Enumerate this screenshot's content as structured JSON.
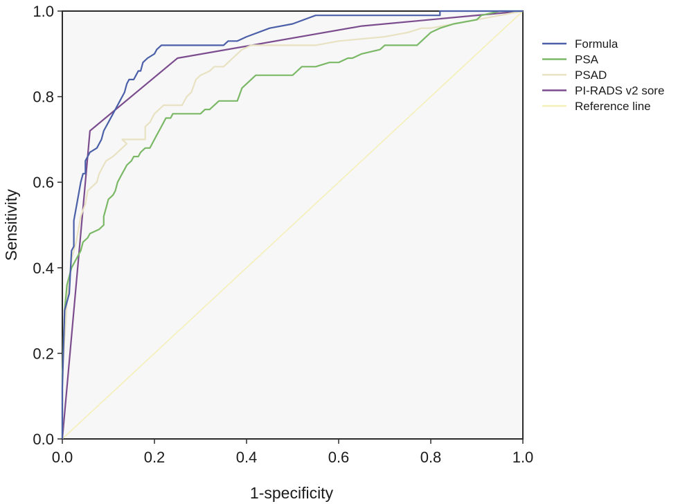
{
  "chart_data": {
    "type": "line",
    "title": "",
    "xlabel": "1-specificity",
    "ylabel": "Sensitivity",
    "xlim": [
      0,
      1
    ],
    "ylim": [
      0,
      1
    ],
    "xticks": [
      "0.0",
      "0.2",
      "0.4",
      "0.6",
      "0.8",
      "1.0"
    ],
    "yticks": [
      "0.0",
      "0.2",
      "0.4",
      "0.6",
      "0.8",
      "1.0"
    ],
    "grid": false,
    "legend_position": "right",
    "background": "#f7f7f7",
    "series": [
      {
        "name": "Formula",
        "color": "#4a5fa8",
        "points": [
          [
            0,
            0
          ],
          [
            0,
            0.12
          ],
          [
            0.005,
            0.3
          ],
          [
            0.015,
            0.34
          ],
          [
            0.02,
            0.44
          ],
          [
            0.025,
            0.45
          ],
          [
            0.025,
            0.51
          ],
          [
            0.035,
            0.57
          ],
          [
            0.04,
            0.6
          ],
          [
            0.045,
            0.62
          ],
          [
            0.05,
            0.62
          ],
          [
            0.05,
            0.65
          ],
          [
            0.055,
            0.66
          ],
          [
            0.06,
            0.67
          ],
          [
            0.075,
            0.68
          ],
          [
            0.085,
            0.7
          ],
          [
            0.09,
            0.72
          ],
          [
            0.1,
            0.74
          ],
          [
            0.11,
            0.76
          ],
          [
            0.115,
            0.77
          ],
          [
            0.125,
            0.79
          ],
          [
            0.135,
            0.81
          ],
          [
            0.14,
            0.83
          ],
          [
            0.145,
            0.84
          ],
          [
            0.155,
            0.84
          ],
          [
            0.16,
            0.85
          ],
          [
            0.165,
            0.86
          ],
          [
            0.17,
            0.86
          ],
          [
            0.175,
            0.88
          ],
          [
            0.185,
            0.89
          ],
          [
            0.2,
            0.9
          ],
          [
            0.205,
            0.91
          ],
          [
            0.215,
            0.92
          ],
          [
            0.25,
            0.92
          ],
          [
            0.35,
            0.92
          ],
          [
            0.36,
            0.93
          ],
          [
            0.38,
            0.93
          ],
          [
            0.4,
            0.94
          ],
          [
            0.45,
            0.96
          ],
          [
            0.5,
            0.97
          ],
          [
            0.55,
            0.99
          ],
          [
            0.6,
            0.99
          ],
          [
            0.7,
            0.99
          ],
          [
            0.82,
            0.99
          ],
          [
            0.82,
            1.0
          ],
          [
            1.0,
            1.0
          ]
        ]
      },
      {
        "name": "PSA",
        "color": "#7ab866",
        "points": [
          [
            0,
            0
          ],
          [
            0,
            0.15
          ],
          [
            0.005,
            0.3
          ],
          [
            0.01,
            0.36
          ],
          [
            0.015,
            0.38
          ],
          [
            0.02,
            0.4
          ],
          [
            0.03,
            0.42
          ],
          [
            0.04,
            0.44
          ],
          [
            0.045,
            0.46
          ],
          [
            0.055,
            0.47
          ],
          [
            0.06,
            0.48
          ],
          [
            0.08,
            0.49
          ],
          [
            0.09,
            0.5
          ],
          [
            0.09,
            0.52
          ],
          [
            0.095,
            0.54
          ],
          [
            0.1,
            0.56
          ],
          [
            0.11,
            0.57
          ],
          [
            0.115,
            0.58
          ],
          [
            0.12,
            0.6
          ],
          [
            0.13,
            0.62
          ],
          [
            0.135,
            0.63
          ],
          [
            0.14,
            0.64
          ],
          [
            0.15,
            0.65
          ],
          [
            0.155,
            0.66
          ],
          [
            0.165,
            0.66
          ],
          [
            0.17,
            0.67
          ],
          [
            0.18,
            0.68
          ],
          [
            0.19,
            0.68
          ],
          [
            0.195,
            0.69
          ],
          [
            0.2,
            0.7
          ],
          [
            0.205,
            0.71
          ],
          [
            0.21,
            0.72
          ],
          [
            0.215,
            0.73
          ],
          [
            0.22,
            0.74
          ],
          [
            0.225,
            0.75
          ],
          [
            0.235,
            0.75
          ],
          [
            0.24,
            0.76
          ],
          [
            0.3,
            0.76
          ],
          [
            0.31,
            0.77
          ],
          [
            0.32,
            0.77
          ],
          [
            0.34,
            0.79
          ],
          [
            0.38,
            0.79
          ],
          [
            0.39,
            0.82
          ],
          [
            0.4,
            0.83
          ],
          [
            0.41,
            0.84
          ],
          [
            0.42,
            0.85
          ],
          [
            0.5,
            0.85
          ],
          [
            0.51,
            0.86
          ],
          [
            0.52,
            0.87
          ],
          [
            0.55,
            0.87
          ],
          [
            0.58,
            0.88
          ],
          [
            0.6,
            0.88
          ],
          [
            0.62,
            0.89
          ],
          [
            0.63,
            0.89
          ],
          [
            0.65,
            0.9
          ],
          [
            0.69,
            0.91
          ],
          [
            0.7,
            0.92
          ],
          [
            0.77,
            0.92
          ],
          [
            0.78,
            0.93
          ],
          [
            0.79,
            0.94
          ],
          [
            0.8,
            0.95
          ],
          [
            0.82,
            0.96
          ],
          [
            0.85,
            0.97
          ],
          [
            0.9,
            0.98
          ],
          [
            0.91,
            0.99
          ],
          [
            0.95,
            1.0
          ],
          [
            1.0,
            1.0
          ]
        ]
      },
      {
        "name": "PSAD",
        "color": "#e8e2c2",
        "points": [
          [
            0,
            0
          ],
          [
            0,
            0.15
          ],
          [
            0.01,
            0.32
          ],
          [
            0.02,
            0.42
          ],
          [
            0.03,
            0.46
          ],
          [
            0.04,
            0.52
          ],
          [
            0.05,
            0.55
          ],
          [
            0.055,
            0.58
          ],
          [
            0.065,
            0.59
          ],
          [
            0.075,
            0.6
          ],
          [
            0.08,
            0.62
          ],
          [
            0.09,
            0.64
          ],
          [
            0.095,
            0.65
          ],
          [
            0.11,
            0.66
          ],
          [
            0.12,
            0.67
          ],
          [
            0.13,
            0.68
          ],
          [
            0.14,
            0.69
          ],
          [
            0.13,
            0.7
          ],
          [
            0.18,
            0.7
          ],
          [
            0.18,
            0.73
          ],
          [
            0.19,
            0.74
          ],
          [
            0.2,
            0.76
          ],
          [
            0.21,
            0.77
          ],
          [
            0.22,
            0.78
          ],
          [
            0.26,
            0.78
          ],
          [
            0.27,
            0.8
          ],
          [
            0.28,
            0.81
          ],
          [
            0.29,
            0.84
          ],
          [
            0.3,
            0.85
          ],
          [
            0.32,
            0.86
          ],
          [
            0.33,
            0.87
          ],
          [
            0.35,
            0.87
          ],
          [
            0.36,
            0.88
          ],
          [
            0.37,
            0.89
          ],
          [
            0.38,
            0.9
          ],
          [
            0.39,
            0.91
          ],
          [
            0.41,
            0.92
          ],
          [
            0.55,
            0.92
          ],
          [
            0.6,
            0.93
          ],
          [
            0.7,
            0.94
          ],
          [
            0.75,
            0.95
          ],
          [
            0.78,
            0.96
          ],
          [
            0.8,
            0.96
          ],
          [
            0.85,
            0.97
          ],
          [
            0.9,
            0.98
          ],
          [
            0.95,
            0.99
          ],
          [
            1.0,
            1.0
          ]
        ]
      },
      {
        "name": "PI-RADS v2 sore",
        "color": "#7b4c8e",
        "points": [
          [
            0,
            0
          ],
          [
            0.06,
            0.72
          ],
          [
            0.25,
            0.89
          ],
          [
            0.65,
            0.965
          ],
          [
            1.0,
            1.0
          ]
        ]
      },
      {
        "name": "Reference line",
        "color": "#f5f0b8",
        "points": [
          [
            0,
            0
          ],
          [
            1,
            1
          ]
        ]
      }
    ]
  }
}
